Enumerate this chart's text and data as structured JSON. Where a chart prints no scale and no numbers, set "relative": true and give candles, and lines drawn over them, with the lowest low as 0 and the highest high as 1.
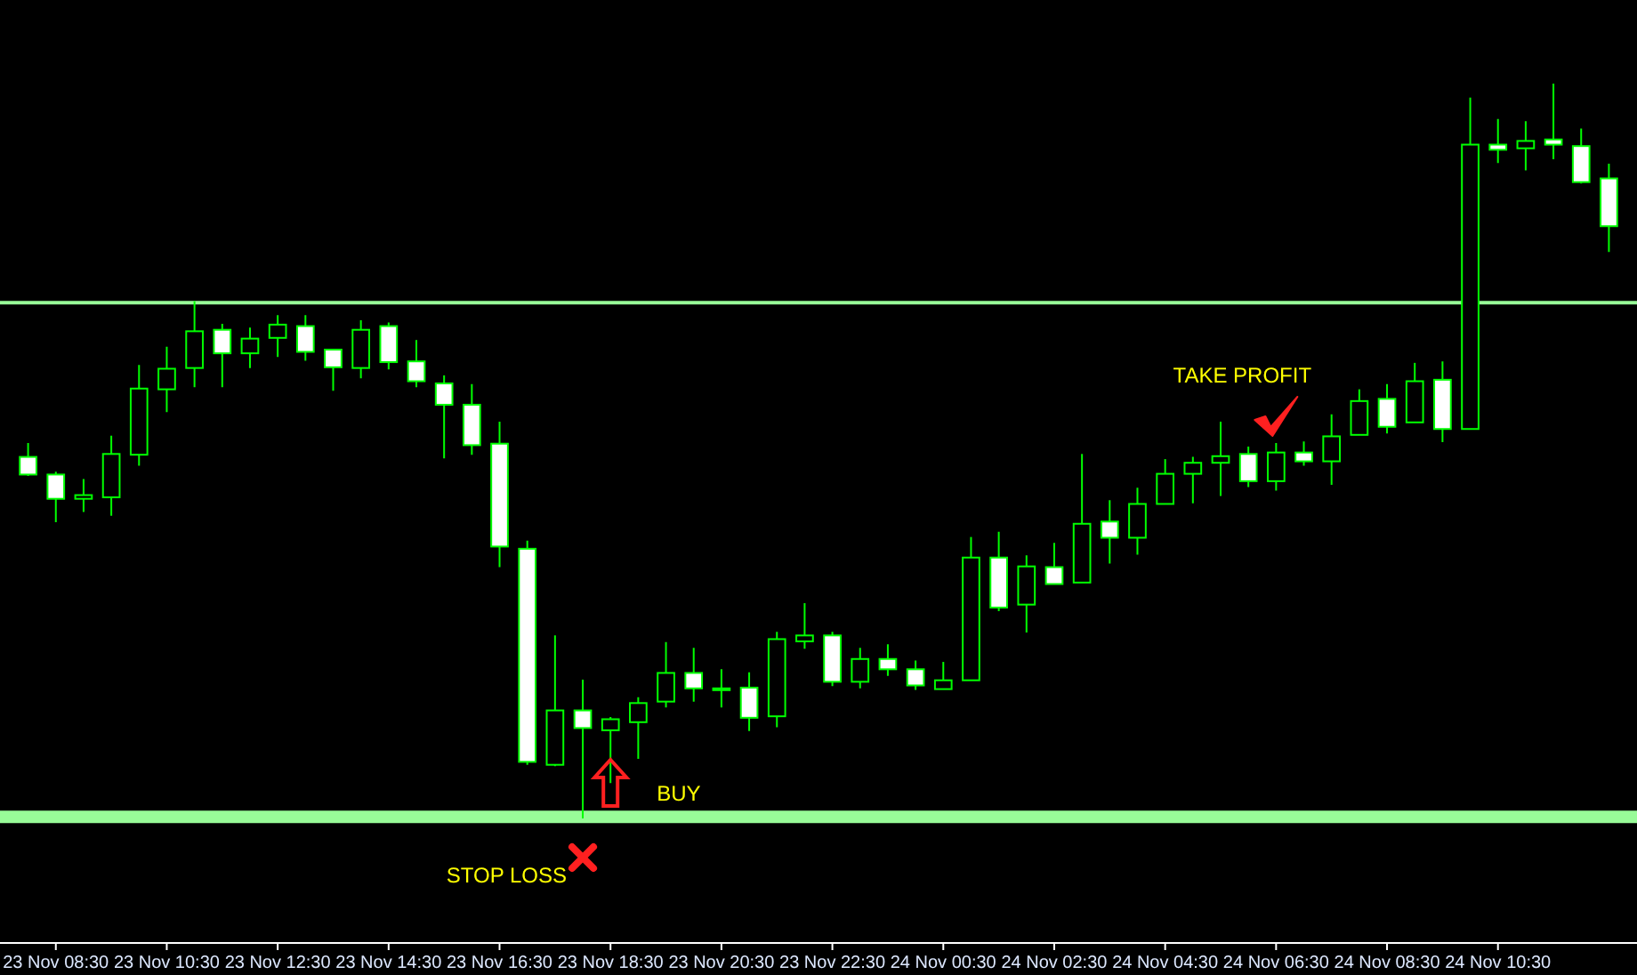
{
  "chart_data": {
    "type": "candlestick",
    "relative": true,
    "categories": [
      null,
      "23 Nov 08:30",
      null,
      null,
      null,
      "23 Nov 10:30",
      null,
      null,
      null,
      "23 Nov 12:30",
      null,
      null,
      null,
      "23 Nov 14:30",
      null,
      null,
      null,
      "23 Nov 16:30",
      null,
      null,
      null,
      "23 Nov 18:30",
      null,
      null,
      null,
      "23 Nov 20:30",
      null,
      null,
      null,
      "23 Nov 22:30",
      null,
      null,
      null,
      "24 Nov 00:30",
      null,
      null,
      null,
      "24 Nov 02:30",
      null,
      null,
      null,
      "24 Nov 04:30",
      null,
      null,
      null,
      "24 Nov 06:30",
      null,
      null,
      null,
      "24 Nov 08:30",
      null,
      null,
      null,
      "24 Nov 10:30",
      null,
      null,
      null,
      null
    ],
    "ohlc": [
      [
        0.492,
        0.511,
        0.466,
        0.468
      ],
      [
        0.468,
        0.472,
        0.403,
        0.435
      ],
      [
        0.435,
        0.462,
        0.417,
        0.44
      ],
      [
        0.437,
        0.521,
        0.412,
        0.496
      ],
      [
        0.495,
        0.617,
        0.48,
        0.585
      ],
      [
        0.584,
        0.642,
        0.553,
        0.612
      ],
      [
        0.613,
        0.704,
        0.587,
        0.663
      ],
      [
        0.665,
        0.673,
        0.587,
        0.633
      ],
      [
        0.633,
        0.668,
        0.613,
        0.653
      ],
      [
        0.654,
        0.685,
        0.628,
        0.672
      ],
      [
        0.67,
        0.685,
        0.623,
        0.635
      ],
      [
        0.638,
        0.638,
        0.582,
        0.614
      ],
      [
        0.613,
        0.678,
        0.599,
        0.665
      ],
      [
        0.67,
        0.675,
        0.611,
        0.621
      ],
      [
        0.622,
        0.651,
        0.587,
        0.595
      ],
      [
        0.592,
        0.603,
        0.49,
        0.563
      ],
      [
        0.563,
        0.591,
        0.495,
        0.508
      ],
      [
        0.51,
        0.54,
        0.342,
        0.37
      ],
      [
        0.367,
        0.378,
        0.073,
        0.077
      ],
      [
        0.073,
        0.249,
        0.071,
        0.147
      ],
      [
        0.147,
        0.189,
        0,
        0.123
      ],
      [
        0.12,
        0.138,
        0.048,
        0.135
      ],
      [
        0.131,
        0.165,
        0.081,
        0.157
      ],
      [
        0.159,
        0.24,
        0.151,
        0.198
      ],
      [
        0.198,
        0.232,
        0.159,
        0.177
      ],
      [
        0.177,
        0.203,
        0.151,
        0.177
      ],
      [
        0.178,
        0.199,
        0.119,
        0.137
      ],
      [
        0.139,
        0.254,
        0.124,
        0.244
      ],
      [
        0.241,
        0.293,
        0.231,
        0.249
      ],
      [
        0.249,
        0.254,
        0.18,
        0.186
      ],
      [
        0.186,
        0.232,
        0.177,
        0.217
      ],
      [
        0.217,
        0.237,
        0.194,
        0.203
      ],
      [
        0.203,
        0.215,
        0.175,
        0.181
      ],
      [
        0.176,
        0.213,
        0.176,
        0.188
      ],
      [
        0.188,
        0.383,
        0.188,
        0.355
      ],
      [
        0.355,
        0.39,
        0.282,
        0.287
      ],
      [
        0.291,
        0.358,
        0.253,
        0.343
      ],
      [
        0.342,
        0.375,
        0.319,
        0.319
      ],
      [
        0.321,
        0.496,
        0.321,
        0.401
      ],
      [
        0.404,
        0.433,
        0.347,
        0.382
      ],
      [
        0.382,
        0.45,
        0.359,
        0.428
      ],
      [
        0.428,
        0.489,
        0.428,
        0.469
      ],
      [
        0.469,
        0.492,
        0.429,
        0.484
      ],
      [
        0.484,
        0.54,
        0.439,
        0.493
      ],
      [
        0.496,
        0.506,
        0.451,
        0.459
      ],
      [
        0.459,
        0.511,
        0.446,
        0.498
      ],
      [
        0.498,
        0.513,
        0.48,
        0.486
      ],
      [
        0.486,
        0.55,
        0.454,
        0.52
      ],
      [
        0.522,
        0.584,
        0.522,
        0.568
      ],
      [
        0.571,
        0.591,
        0.524,
        0.533
      ],
      [
        0.539,
        0.62,
        0.539,
        0.595
      ],
      [
        0.597,
        0.622,
        0.512,
        0.53
      ],
      [
        0.53,
        0.981,
        0.53,
        0.917
      ],
      [
        0.917,
        0.952,
        0.892,
        0.91
      ],
      [
        0.912,
        0.949,
        0.882,
        0.922
      ],
      [
        0.924,
        1,
        0.897,
        0.917
      ],
      [
        0.915,
        0.939,
        0.864,
        0.866
      ],
      [
        0.871,
        0.891,
        0.771,
        0.806
      ]
    ],
    "ref_lines": [
      {
        "axis": "y",
        "value": 0.702,
        "color": "#98fb98"
      },
      {
        "axis": "y",
        "value": 0.002,
        "color": "#98fb98"
      }
    ],
    "annotations": [
      "BUY",
      "STOP LOSS",
      "TAKE PROFIT"
    ]
  }
}
